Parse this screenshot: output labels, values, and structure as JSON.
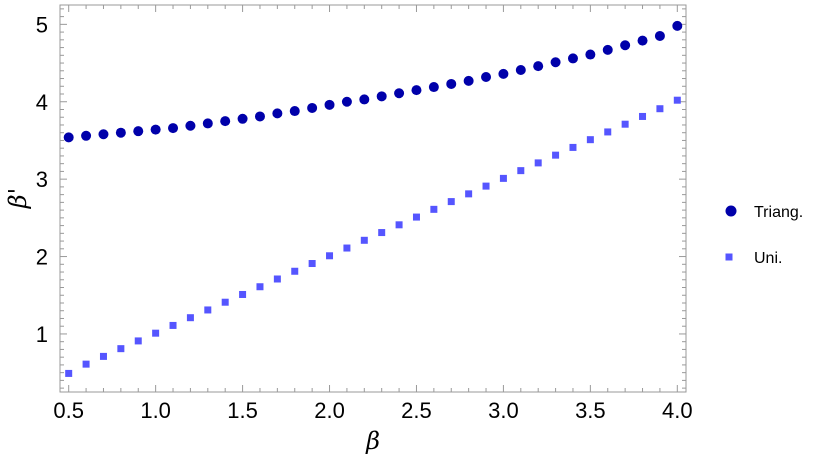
{
  "chart_data": {
    "type": "scatter",
    "xlabel": "β",
    "ylabel": "β'",
    "xlim": [
      0.45,
      4.05
    ],
    "ylim": [
      0.25,
      5.25
    ],
    "x_ticks": [
      "0.5",
      "1.0",
      "1.5",
      "2.0",
      "2.5",
      "3.0",
      "3.5",
      "4.0"
    ],
    "y_ticks": [
      "1",
      "2",
      "3",
      "4",
      "5"
    ],
    "legend_position": "right",
    "x": [
      0.5,
      0.6,
      0.7,
      0.8,
      0.9,
      1.0,
      1.1,
      1.2,
      1.3,
      1.4,
      1.5,
      1.6,
      1.7,
      1.8,
      1.9,
      2.0,
      2.1,
      2.2,
      2.3,
      2.4,
      2.5,
      2.6,
      2.7,
      2.8,
      2.9,
      3.0,
      3.1,
      3.2,
      3.3,
      3.4,
      3.5,
      3.6,
      3.7,
      3.8,
      3.9,
      4.0
    ],
    "series": [
      {
        "name": "Triang.",
        "marker": "circle",
        "color": "#0000aa",
        "values": [
          3.54,
          3.56,
          3.58,
          3.6,
          3.62,
          3.64,
          3.66,
          3.69,
          3.72,
          3.75,
          3.78,
          3.81,
          3.85,
          3.88,
          3.92,
          3.96,
          4.0,
          4.03,
          4.07,
          4.11,
          4.15,
          4.19,
          4.23,
          4.27,
          4.32,
          4.36,
          4.41,
          4.46,
          4.51,
          4.56,
          4.61,
          4.67,
          4.73,
          4.79,
          4.85,
          4.98
        ]
      },
      {
        "name": "Uni.",
        "marker": "square",
        "color": "#5555ff",
        "values": [
          0.49,
          0.61,
          0.71,
          0.81,
          0.91,
          1.01,
          1.11,
          1.21,
          1.31,
          1.41,
          1.51,
          1.61,
          1.71,
          1.81,
          1.91,
          2.01,
          2.11,
          2.21,
          2.31,
          2.41,
          2.51,
          2.61,
          2.71,
          2.81,
          2.91,
          3.01,
          3.11,
          3.21,
          3.31,
          3.41,
          3.51,
          3.61,
          3.71,
          3.81,
          3.91,
          4.02
        ]
      }
    ]
  }
}
